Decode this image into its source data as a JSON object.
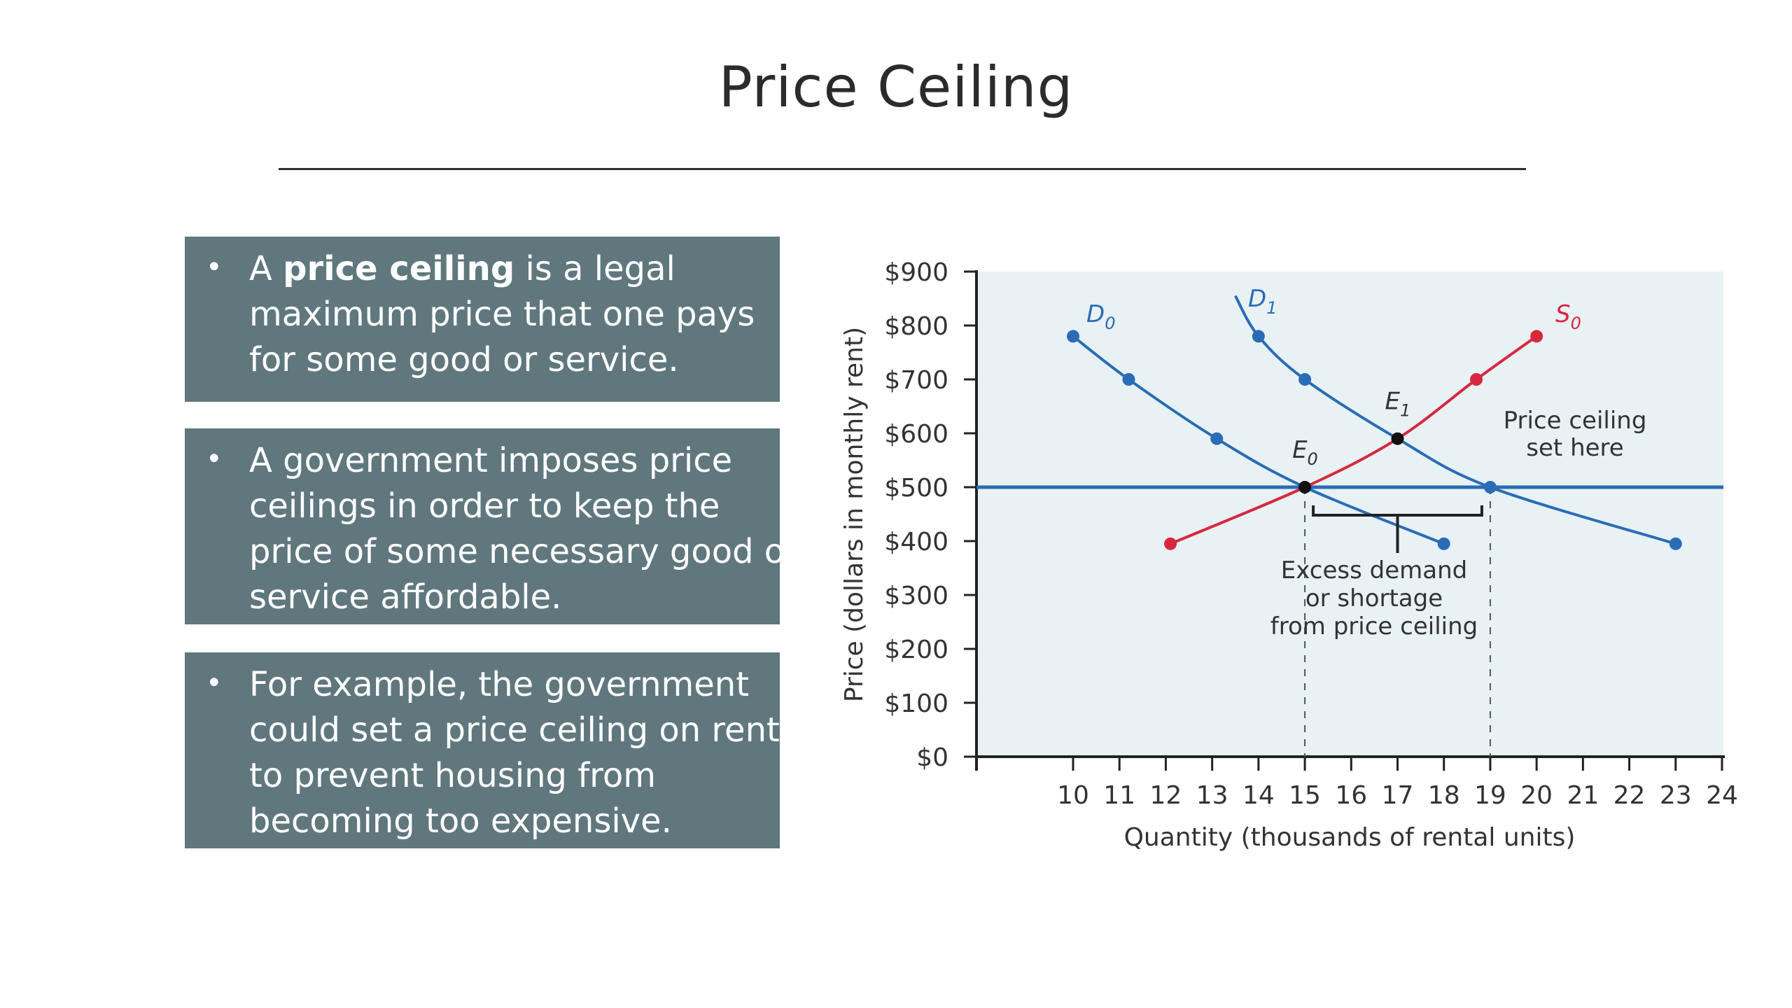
{
  "slide": {
    "title": "Price Ceiling",
    "bullets": [
      {
        "bullet": "•",
        "pre": "A ",
        "bold": "price ceiling",
        "post": " is a legal",
        "line2": "maximum price that one pays",
        "line3": "for some good or service."
      },
      {
        "bullet": "•",
        "line1": "A government imposes price",
        "line2": "ceilings in order to keep the",
        "line3": "price of some necessary good or",
        "line4": "service affordable."
      },
      {
        "bullet": "•",
        "line1": "For example, the government",
        "line2": "could set a price ceiling on rent",
        "line3": "to prevent housing from",
        "line4": "becoming too expensive."
      }
    ]
  },
  "chart_data": {
    "type": "line",
    "xlabel": "Quantity (thousands of rental units)",
    "ylabel": "Price (dollars in monthly rent)",
    "xlim": [
      8,
      24
    ],
    "ylim": [
      0,
      900
    ],
    "x_ticks": [
      10,
      11,
      12,
      13,
      14,
      15,
      16,
      17,
      18,
      19,
      20,
      21,
      22,
      23,
      24
    ],
    "y_ticks": [
      {
        "value": 0,
        "label": "$0"
      },
      {
        "value": 100,
        "label": "$100"
      },
      {
        "value": 200,
        "label": "$200"
      },
      {
        "value": 300,
        "label": "$300"
      },
      {
        "value": 400,
        "label": "$400"
      },
      {
        "value": 500,
        "label": "$500"
      },
      {
        "value": 600,
        "label": "$600"
      },
      {
        "value": 700,
        "label": "$700"
      },
      {
        "value": 800,
        "label": "$800"
      },
      {
        "value": 900,
        "label": "$900"
      }
    ],
    "series": [
      {
        "name": "D0",
        "label_main": "D",
        "label_sub": "0",
        "color": "#2a6cb5",
        "points": [
          [
            10,
            780
          ],
          [
            11.2,
            700
          ],
          [
            13.1,
            590
          ],
          [
            15,
            500
          ],
          [
            18,
            395
          ]
        ]
      },
      {
        "name": "D1",
        "label_main": "D",
        "label_sub": "1",
        "color": "#2a6cb5",
        "start": [
          13.5,
          855
        ],
        "points": [
          [
            14,
            780
          ],
          [
            15,
            700
          ],
          [
            17,
            590
          ],
          [
            19,
            500
          ],
          [
            23,
            395
          ]
        ]
      },
      {
        "name": "S0",
        "label_main": "S",
        "label_sub": "0",
        "color": "#d7283f",
        "points": [
          [
            12.1,
            395
          ],
          [
            15,
            500
          ],
          [
            17,
            590
          ],
          [
            18.7,
            700
          ],
          [
            20,
            780
          ]
        ]
      }
    ],
    "ceiling": {
      "value": 500,
      "color": "#2a6cb5",
      "label_line1": "Price ceiling",
      "label_line2": "set here"
    },
    "equilibria": [
      {
        "name": "E0",
        "label_main": "E",
        "label_sub": "0",
        "x": 15,
        "y": 500
      },
      {
        "name": "E1",
        "label_main": "E",
        "label_sub": "1",
        "x": 17,
        "y": 590
      }
    ],
    "shortage": {
      "from": 15,
      "to": 19,
      "line1": "Excess demand",
      "line2": "or shortage",
      "line3": "from price ceiling"
    },
    "plot_bg": "#e8f1f4"
  }
}
